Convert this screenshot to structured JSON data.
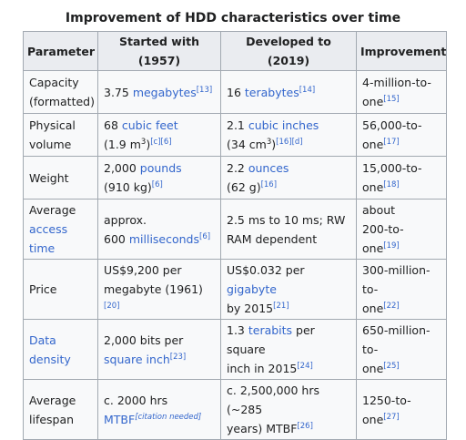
{
  "caption": "Improvement of HDD characteristics over time",
  "headers": [
    "Parameter",
    "Started with (1957)",
    "Developed to (2019)",
    "Improvement"
  ],
  "rows": [
    {
      "param": [
        {
          "t": "Capacity"
        },
        {
          "br": 1
        },
        {
          "t": "(formatted)"
        }
      ],
      "started": [
        {
          "t": "3.75 "
        },
        {
          "t": "megabytes",
          "link": 1
        },
        {
          "t": "[13]",
          "ref": 1
        }
      ],
      "developed": [
        {
          "t": "16 "
        },
        {
          "t": "terabytes",
          "link": 1
        },
        {
          "t": "[14]",
          "ref": 1
        }
      ],
      "improvement": [
        {
          "t": "4-million-to-"
        },
        {
          "br": 1
        },
        {
          "t": "one"
        },
        {
          "t": "[15]",
          "ref": 1
        }
      ]
    },
    {
      "param": [
        {
          "t": "Physical"
        },
        {
          "br": 1
        },
        {
          "t": "volume"
        }
      ],
      "started": [
        {
          "t": "68 "
        },
        {
          "t": "cubic feet",
          "link": 1
        },
        {
          "br": 1
        },
        {
          "t": "(1.9 m"
        },
        {
          "t": "3",
          "sup": 1
        },
        {
          "t": ")"
        },
        {
          "t": "[c][6]",
          "ref": 1
        }
      ],
      "developed": [
        {
          "t": "2.1 "
        },
        {
          "t": "cubic inches",
          "link": 1
        },
        {
          "br": 1
        },
        {
          "t": "(34 cm"
        },
        {
          "t": "3",
          "sup": 1
        },
        {
          "t": ")"
        },
        {
          "t": "[16][d]",
          "ref": 1
        }
      ],
      "improvement": [
        {
          "t": "56,000-to-"
        },
        {
          "br": 1
        },
        {
          "t": "one"
        },
        {
          "t": "[17]",
          "ref": 1
        }
      ]
    },
    {
      "param": [
        {
          "t": "Weight"
        }
      ],
      "started": [
        {
          "t": "2,000 "
        },
        {
          "t": "pounds",
          "link": 1
        },
        {
          "br": 1
        },
        {
          "t": "(910 kg)"
        },
        {
          "t": "[6]",
          "ref": 1
        }
      ],
      "developed": [
        {
          "t": "2.2 "
        },
        {
          "t": "ounces",
          "link": 1
        },
        {
          "br": 1
        },
        {
          "t": "(62 g)"
        },
        {
          "t": "[16]",
          "ref": 1
        }
      ],
      "improvement": [
        {
          "t": "15,000-to-"
        },
        {
          "br": 1
        },
        {
          "t": "one"
        },
        {
          "t": "[18]",
          "ref": 1
        }
      ]
    },
    {
      "param": [
        {
          "t": "Average"
        },
        {
          "br": 1
        },
        {
          "t": "access time",
          "link": 1
        }
      ],
      "started": [
        {
          "t": "approx."
        },
        {
          "br": 1
        },
        {
          "t": "600 "
        },
        {
          "t": "milliseconds",
          "link": 1
        },
        {
          "t": "[6]",
          "ref": 1
        }
      ],
      "developed": [
        {
          "t": "2.5 ms to 10 ms; RW"
        },
        {
          "br": 1
        },
        {
          "t": "RAM dependent"
        }
      ],
      "improvement": [
        {
          "t": "about"
        },
        {
          "br": 1
        },
        {
          "t": "200-to-one"
        },
        {
          "t": "[19]",
          "ref": 1
        }
      ]
    },
    {
      "param": [
        {
          "t": "Price"
        }
      ],
      "started": [
        {
          "t": "US$9,200 per"
        },
        {
          "br": 1
        },
        {
          "t": "megabyte (1961)"
        },
        {
          "t": "[20]",
          "ref": 1
        }
      ],
      "developed": [
        {
          "t": "US$0.032 per "
        },
        {
          "t": "gigabyte",
          "link": 1
        },
        {
          "br": 1
        },
        {
          "t": "by 2015"
        },
        {
          "t": "[21]",
          "ref": 1
        }
      ],
      "improvement": [
        {
          "t": "300-million-to-"
        },
        {
          "br": 1
        },
        {
          "t": "one"
        },
        {
          "t": "[22]",
          "ref": 1
        }
      ]
    },
    {
      "param": [
        {
          "t": "Data",
          "link": 1
        },
        {
          "br": 1
        },
        {
          "t": "density",
          "link": 1
        }
      ],
      "started": [
        {
          "t": "2,000 bits per"
        },
        {
          "br": 1
        },
        {
          "t": "square inch",
          "link": 1
        },
        {
          "t": "[23]",
          "ref": 1
        }
      ],
      "developed": [
        {
          "t": "1.3 "
        },
        {
          "t": "terabits",
          "link": 1
        },
        {
          "t": " per square"
        },
        {
          "br": 1
        },
        {
          "t": "inch in 2015"
        },
        {
          "t": "[24]",
          "ref": 1
        }
      ],
      "improvement": [
        {
          "t": "650-million-to-"
        },
        {
          "br": 1
        },
        {
          "t": "one"
        },
        {
          "t": "[25]",
          "ref": 1
        }
      ]
    },
    {
      "param": [
        {
          "t": "Average"
        },
        {
          "br": 1
        },
        {
          "t": "lifespan"
        }
      ],
      "started": [
        {
          "t": "c. 2000 hrs"
        },
        {
          "br": 1
        },
        {
          "t": "MTBF",
          "link": 1
        },
        {
          "t": "[citation needed]",
          "ref": 1,
          "italic": 1
        }
      ],
      "developed": [
        {
          "t": "c. 2,500,000 hrs (~285"
        },
        {
          "br": 1
        },
        {
          "t": "years) MTBF"
        },
        {
          "t": "[26]",
          "ref": 1
        }
      ],
      "improvement": [
        {
          "t": "1250-to-"
        },
        {
          "br": 1
        },
        {
          "t": "one"
        },
        {
          "t": "[27]",
          "ref": 1
        }
      ]
    }
  ]
}
